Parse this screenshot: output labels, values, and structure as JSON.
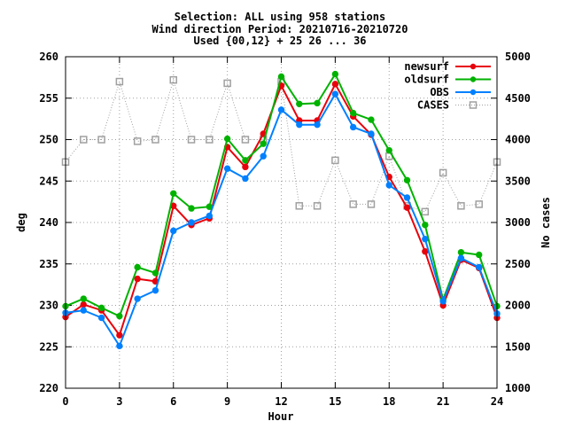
{
  "chart_data": {
    "type": "line",
    "title_lines": [
      "Selection: ALL using   958 stations",
      "Wind direction   Period: 20210716-20210720",
      "Used {00,12} + 25 26 ... 36"
    ],
    "xlabel": "Hour",
    "ylabel": "deg",
    "y2label": "No cases",
    "xlim": [
      0,
      24
    ],
    "ylim": [
      220,
      260
    ],
    "y2lim": [
      1000,
      5000
    ],
    "x_ticks": [
      0,
      3,
      6,
      9,
      12,
      15,
      18,
      21,
      24
    ],
    "y_ticks": [
      220,
      225,
      230,
      235,
      240,
      245,
      250,
      255,
      260
    ],
    "y2_ticks": [
      1000,
      1500,
      2000,
      2500,
      3000,
      3500,
      4000,
      4500,
      5000
    ],
    "x": [
      0,
      1,
      2,
      3,
      4,
      5,
      6,
      7,
      8,
      9,
      10,
      11,
      12,
      13,
      14,
      15,
      16,
      17,
      18,
      19,
      20,
      21,
      22,
      23,
      24
    ],
    "legend_position": "top-right",
    "series": [
      {
        "name": "newsurf",
        "color": "#e8000b",
        "marker": "filled-circle",
        "axis": "left",
        "values": [
          228.6,
          230.1,
          229.4,
          226.4,
          233.2,
          232.9,
          242.0,
          239.7,
          240.5,
          249.1,
          246.7,
          250.7,
          256.5,
          252.3,
          252.3,
          256.7,
          252.8,
          250.6,
          245.5,
          241.8,
          236.5,
          230.0,
          235.5,
          234.5,
          228.5
        ]
      },
      {
        "name": "oldsurf",
        "color": "#00b200",
        "marker": "filled-circle",
        "axis": "left",
        "values": [
          229.9,
          230.8,
          229.7,
          228.7,
          234.6,
          233.9,
          243.5,
          241.7,
          241.9,
          250.1,
          247.5,
          249.5,
          257.6,
          254.3,
          254.4,
          257.9,
          253.2,
          252.4,
          248.7,
          245.1,
          239.7,
          230.7,
          236.4,
          236.1,
          229.9
        ]
      },
      {
        "name": "OBS",
        "color": "#0080ff",
        "marker": "filled-circle",
        "axis": "left",
        "values": [
          229.1,
          229.4,
          228.5,
          225.1,
          230.8,
          231.8,
          239.0,
          240.0,
          240.8,
          246.5,
          245.3,
          248.0,
          253.6,
          251.8,
          251.8,
          255.5,
          251.5,
          250.7,
          244.5,
          243.0,
          238.0,
          230.5,
          235.7,
          234.6,
          229.0
        ]
      },
      {
        "name": "CASES",
        "color": "#a0a0a0",
        "marker": "open-square",
        "axis": "right",
        "line_style": "dotted",
        "values": [
          3730,
          4000,
          4000,
          4700,
          3980,
          4000,
          4720,
          4000,
          4000,
          4680,
          4000,
          4000,
          4700,
          3200,
          3200,
          3750,
          3220,
          3220,
          3800,
          3200,
          3130,
          3600,
          3200,
          3220,
          3730
        ]
      }
    ]
  }
}
